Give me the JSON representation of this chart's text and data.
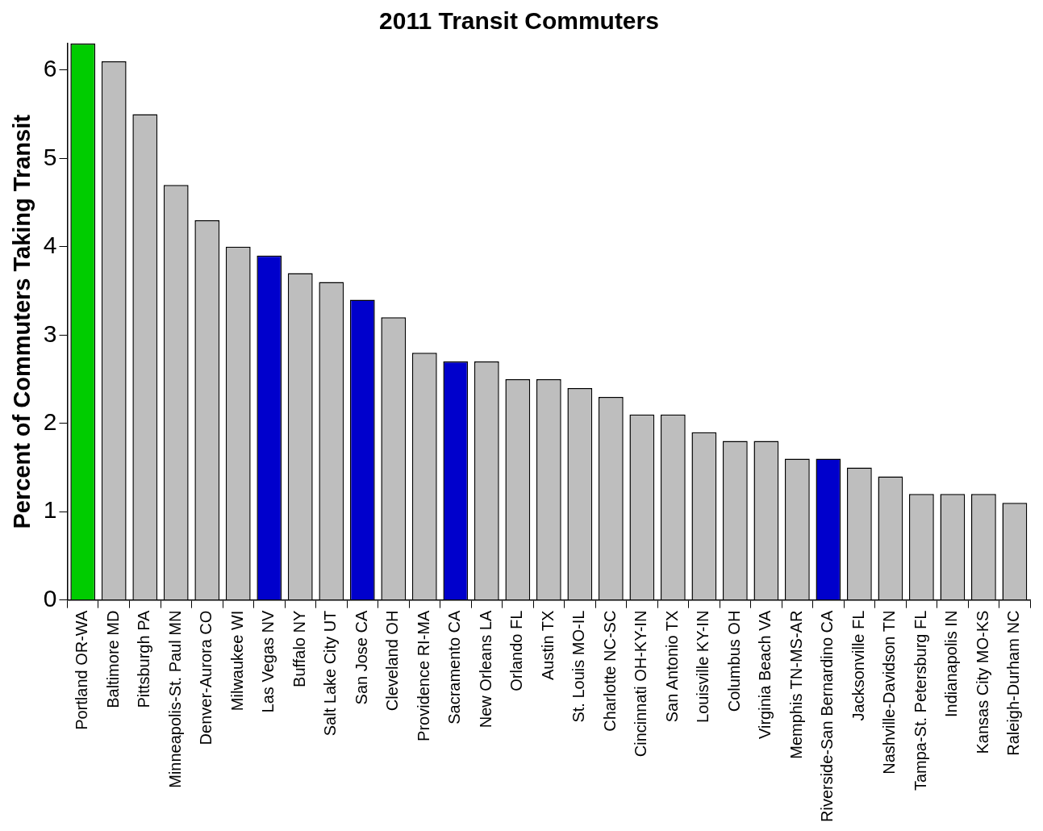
{
  "chart_data": {
    "type": "bar",
    "title": "2011 Transit Commuters",
    "ylabel": "Percent of Commuters Taking Transit",
    "categories": [
      "Portland OR-WA",
      "Baltimore MD",
      "Pittsburgh PA",
      "Minneapolis-St. Paul MN",
      "Denver-Aurora CO",
      "Milwaukee WI",
      "Las Vegas NV",
      "Buffalo NY",
      "Salt Lake City UT",
      "San Jose CA",
      "Cleveland OH",
      "Providence RI-MA",
      "Sacramento CA",
      "New Orleans LA",
      "Orlando FL",
      "Austin TX",
      "St. Louis MO-IL",
      "Charlotte NC-SC",
      "Cincinnati OH-KY-IN",
      "San Antonio TX",
      "Louisville KY-IN",
      "Columbus OH",
      "Virginia Beach VA",
      "Memphis TN-MS-AR",
      "Riverside-San Bernardino CA",
      "Jacksonville FL",
      "Nashville-Davidson TN",
      "Tampa-St. Petersburg FL",
      "Indianapolis IN",
      "Kansas City MO-KS",
      "Raleigh-Durham NC"
    ],
    "values": [
      6.3,
      6.1,
      5.5,
      4.7,
      4.3,
      4.0,
      3.9,
      3.7,
      3.6,
      3.4,
      3.2,
      2.8,
      2.7,
      2.7,
      2.5,
      2.5,
      2.4,
      2.3,
      2.1,
      2.1,
      1.9,
      1.8,
      1.8,
      1.6,
      1.6,
      1.5,
      1.4,
      1.2,
      1.2,
      1.2,
      1.1
    ],
    "colors": [
      "#00cc00",
      "#bebebe",
      "#bebebe",
      "#bebebe",
      "#bebebe",
      "#bebebe",
      "#0000cc",
      "#bebebe",
      "#bebebe",
      "#0000cc",
      "#bebebe",
      "#bebebe",
      "#0000cc",
      "#bebebe",
      "#bebebe",
      "#bebebe",
      "#bebebe",
      "#bebebe",
      "#bebebe",
      "#bebebe",
      "#bebebe",
      "#bebebe",
      "#bebebe",
      "#bebebe",
      "#0000cc",
      "#bebebe",
      "#bebebe",
      "#bebebe",
      "#bebebe",
      "#bebebe",
      "#bebebe"
    ],
    "ylim": [
      0,
      6.3
    ],
    "yticks": [
      0,
      1,
      2,
      3,
      4,
      5,
      6
    ],
    "grid": false,
    "legend": false
  }
}
